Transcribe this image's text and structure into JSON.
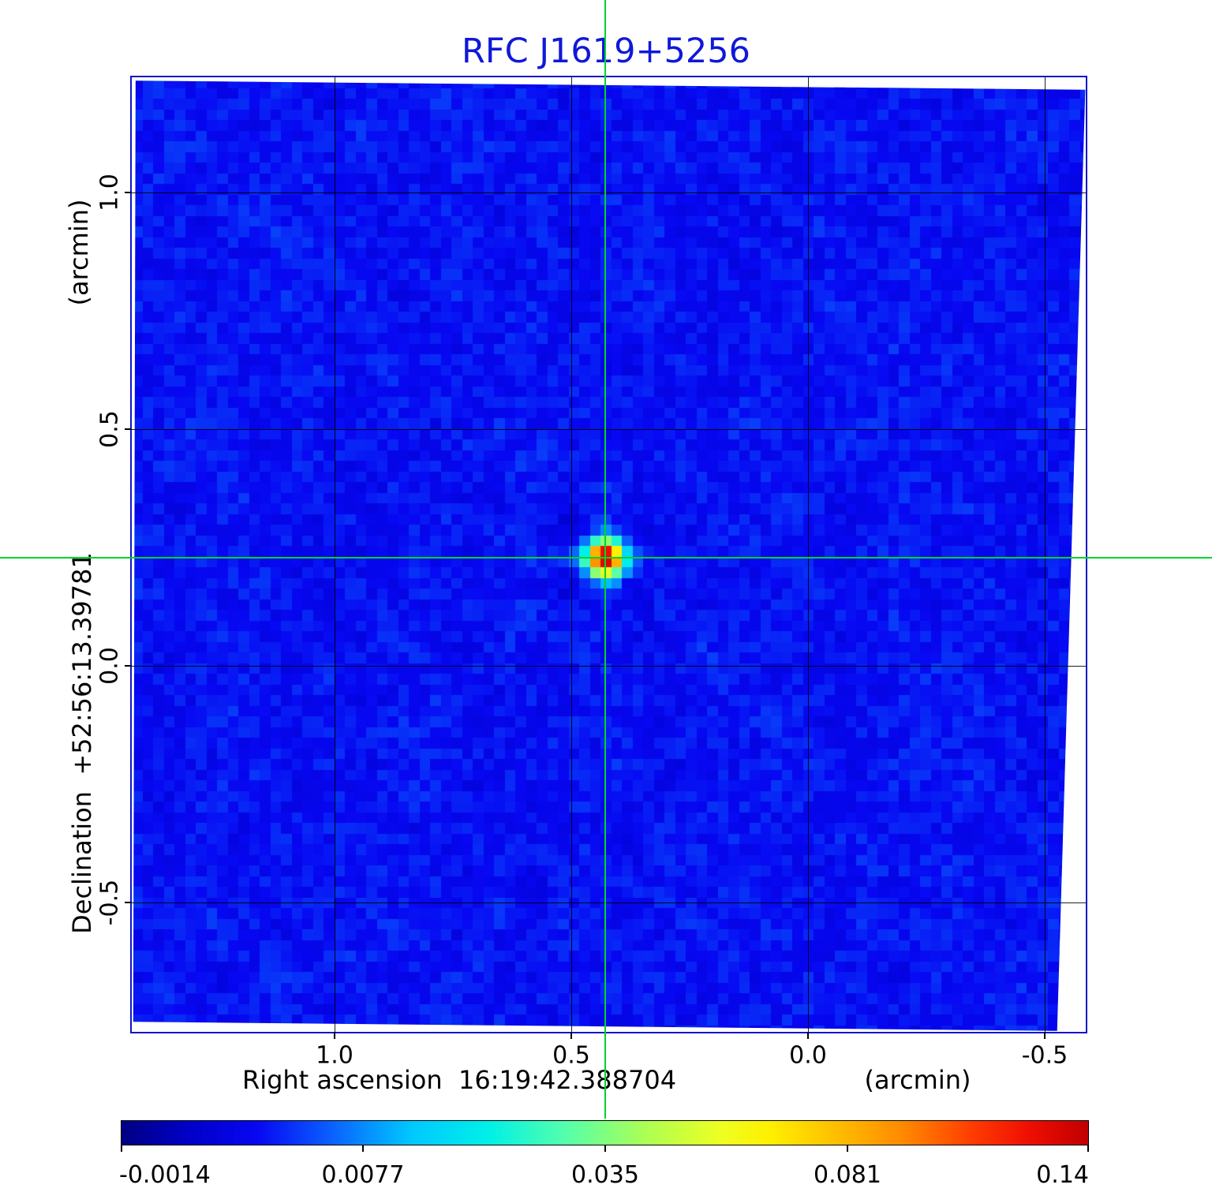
{
  "title": "RFC J1619+5256",
  "colors": {
    "title": "#1018d8",
    "frame": "#0d14cc",
    "crosshair": "#00d42a",
    "grid": "#000000",
    "text": "#000000"
  },
  "axes": {
    "x": {
      "label": "Right ascension  16:19:42.388704",
      "unit": "(arcmin)",
      "ticks": [
        "1.0",
        "0.5",
        "0.0",
        "-0.5"
      ]
    },
    "y": {
      "label": "Declination  +52:56:13.39781",
      "unit": "(arcmin)",
      "ticks": [
        "1.0",
        "0.5",
        "0.0",
        "-0.5"
      ]
    }
  },
  "colorbar": {
    "tick_labels": [
      "-0.0014",
      "0.0077",
      "0.035",
      "0.081",
      "0.14"
    ]
  },
  "chart_data": {
    "type": "heatmap",
    "title": "RFC J1619+5256",
    "xlabel": "Right ascension  16:19:42.388704 (arcmin)",
    "ylabel": "Declination  +52:56:13.39781 (arcmin)",
    "x_ticks_arcmin": [
      1.0,
      0.5,
      0.0,
      -0.5
    ],
    "y_ticks_arcmin": [
      1.0,
      0.5,
      0.0,
      -0.5
    ],
    "x_range_arcmin": [
      1.43,
      -0.59
    ],
    "y_range_arcmin": [
      -0.79,
      1.25
    ],
    "grid": true,
    "legend": "none",
    "colorbar": {
      "orientation": "horizontal",
      "position": "bottom",
      "ticks": [
        -0.0014,
        0.0077,
        0.035,
        0.081,
        0.14
      ],
      "min": -0.0014,
      "max": 0.14,
      "scale": "arcsinh"
    },
    "colormap_stops": [
      [
        0.0,
        "#000082"
      ],
      [
        0.07,
        "#0000c8"
      ],
      [
        0.14,
        "#0707f2"
      ],
      [
        0.22,
        "#0a64ff"
      ],
      [
        0.3,
        "#00c8ff"
      ],
      [
        0.38,
        "#00f0e8"
      ],
      [
        0.46,
        "#55ffaa"
      ],
      [
        0.54,
        "#aaff55"
      ],
      [
        0.62,
        "#eeff22"
      ],
      [
        0.67,
        "#fff000"
      ],
      [
        0.74,
        "#ffbe00"
      ],
      [
        0.81,
        "#ff8800"
      ],
      [
        0.88,
        "#ff3c00"
      ],
      [
        0.94,
        "#ee0e00"
      ],
      [
        1.0,
        "#c00000"
      ]
    ],
    "source": {
      "name": "RFC J1619+5256",
      "ra": "16:19:42.388704",
      "dec": "+52:56:13.39781",
      "x_arcmin": 0.43,
      "y_arcmin": 0.23,
      "peak_value": 0.14
    },
    "crosshair": {
      "x_arcmin": 0.43,
      "y_arcmin": 0.23
    },
    "background_level": 0.001
  }
}
